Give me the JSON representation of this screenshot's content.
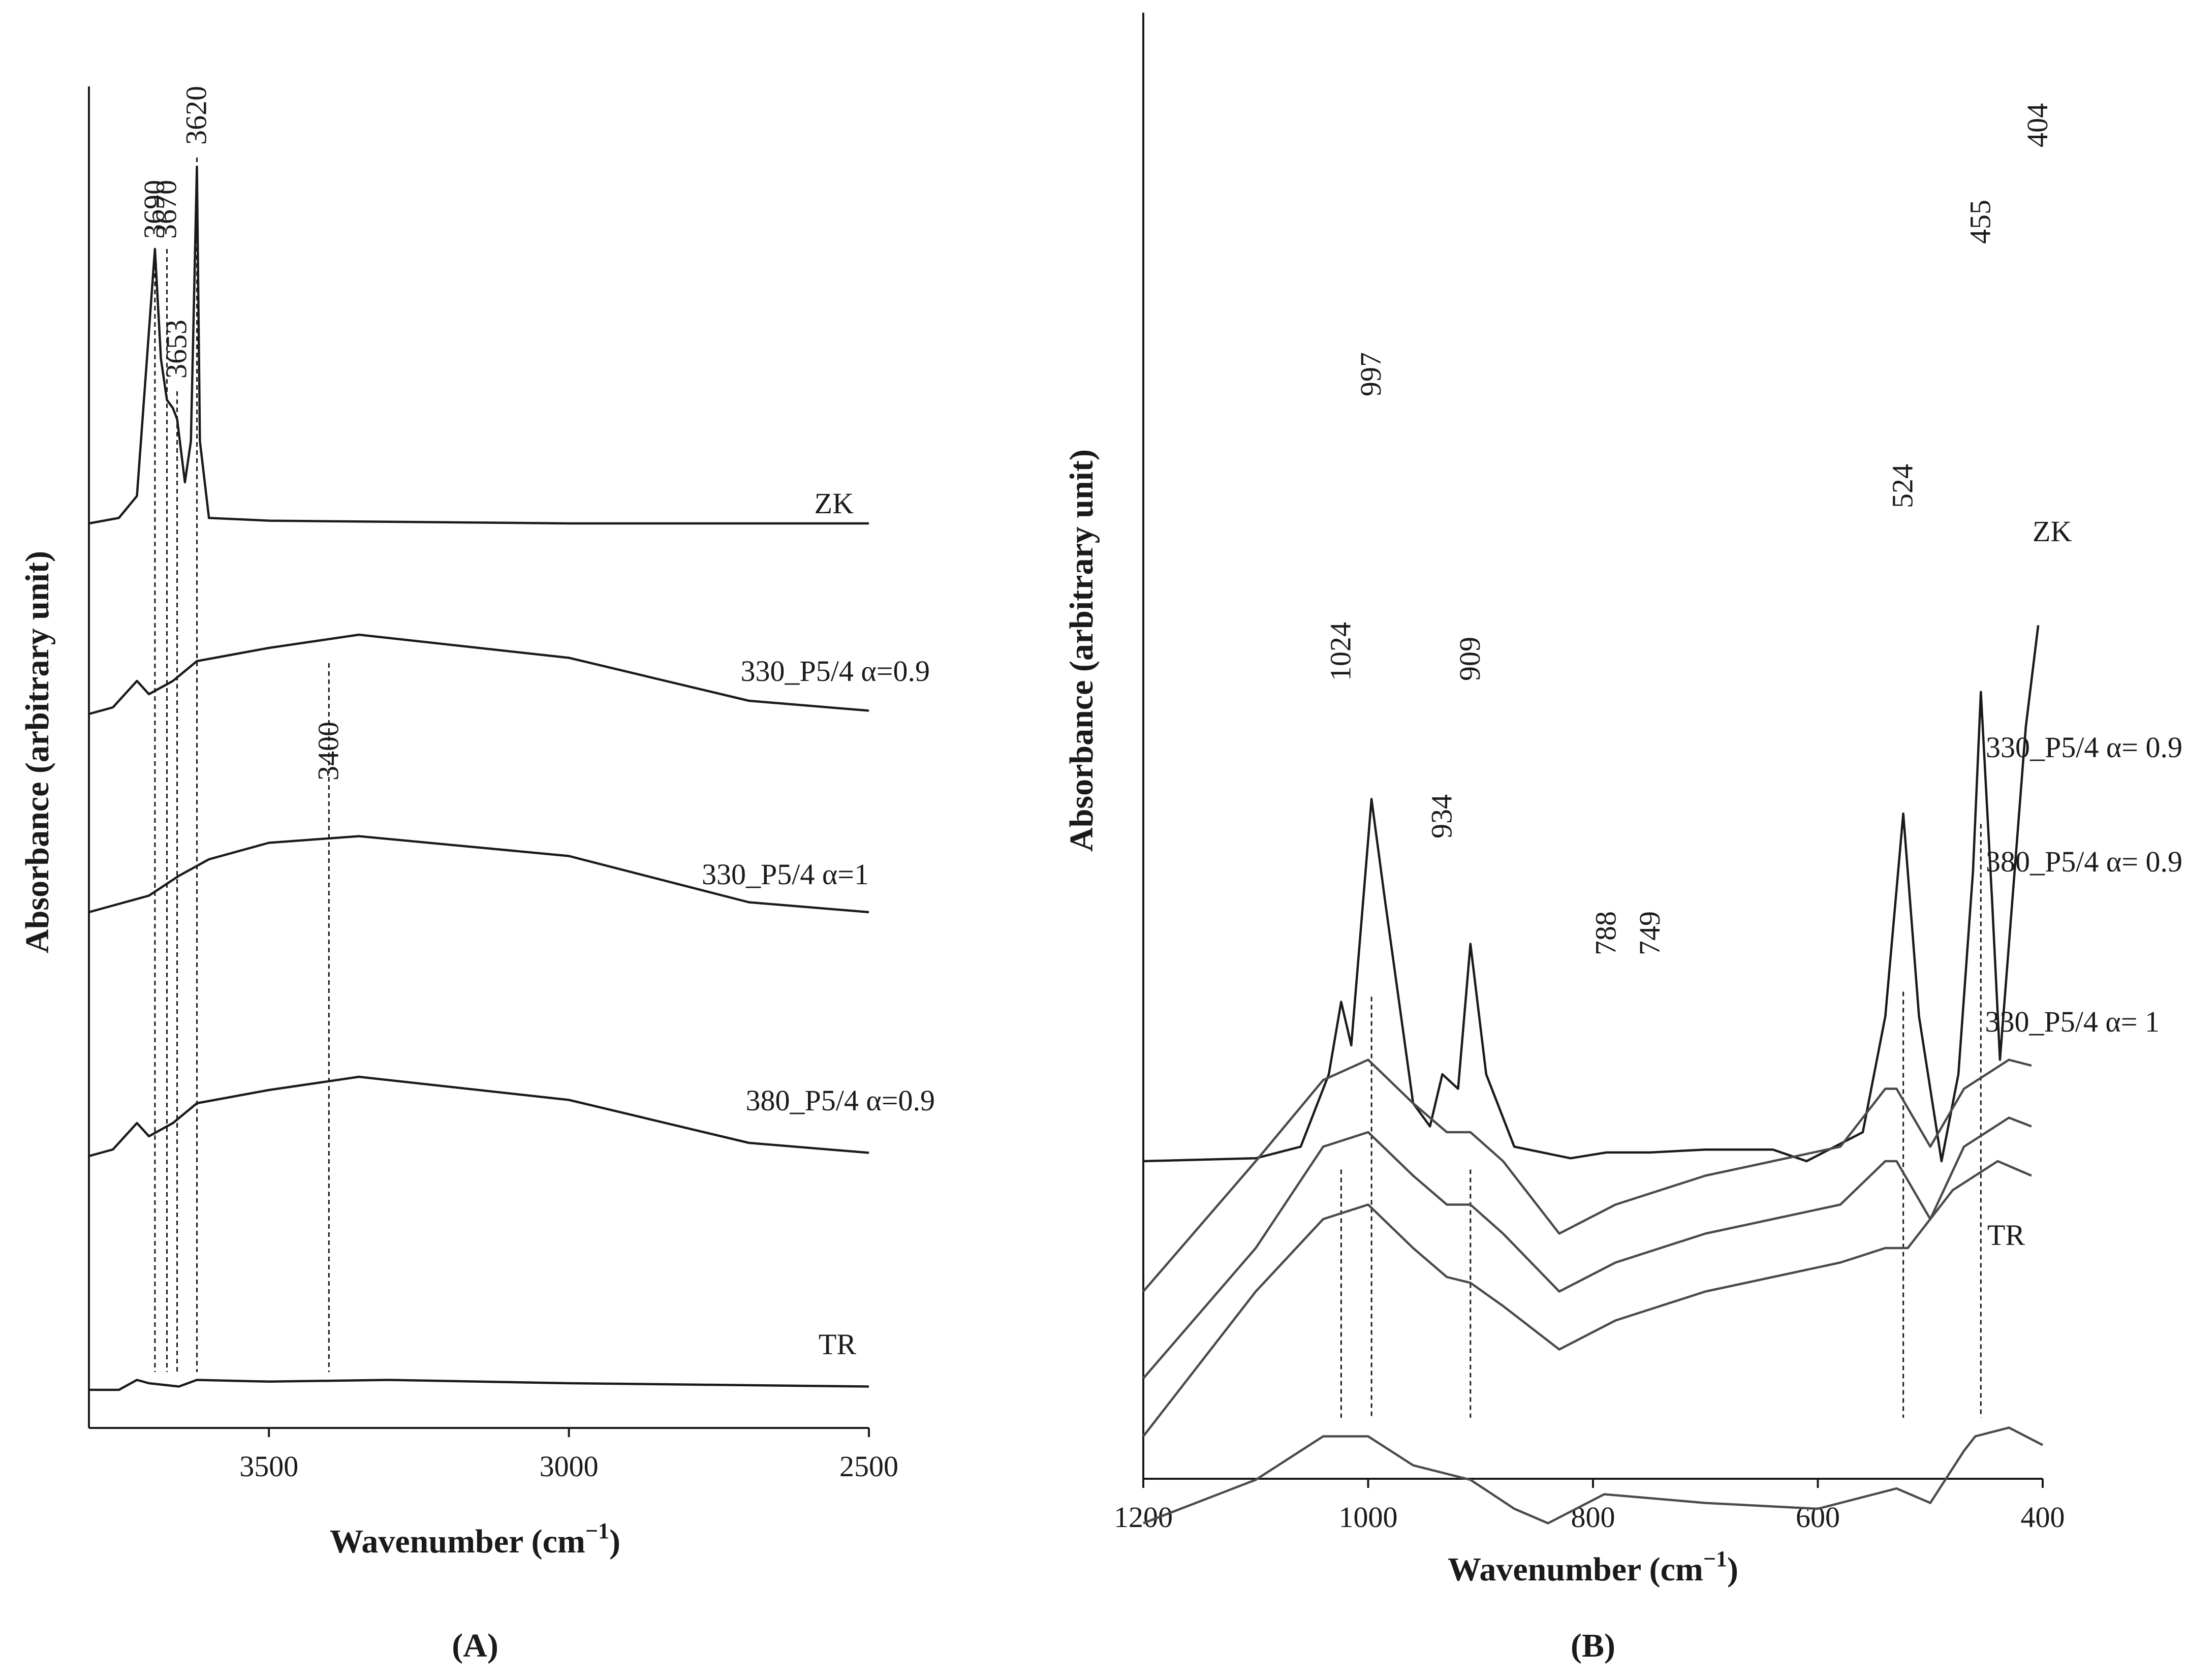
{
  "chart_data": [
    {
      "panel": "A",
      "type": "line",
      "xlabel_main": "Wavenumber (cm",
      "xlabel_sup": "−1",
      "xlabel_close": ")",
      "ylabel": "Absorbance (arbitrary unit)",
      "xlim": [
        3800,
        2500
      ],
      "x_ticks": [
        "3500",
        "3000",
        "2500"
      ],
      "x_tick_values": [
        3500,
        3000,
        2500
      ],
      "peak_markers": [
        {
          "label": "3690",
          "x": 3690
        },
        {
          "label": "3670",
          "x": 3670
        },
        {
          "label": "3653",
          "x": 3653
        },
        {
          "label": "3620",
          "x": 3620
        },
        {
          "label": "3400",
          "x": 3400
        }
      ],
      "series": [
        {
          "name": "ZK",
          "points": [
            [
              3800,
              0
            ],
            [
              3750,
              0.02
            ],
            [
              3720,
              0.1
            ],
            [
              3700,
              0.7
            ],
            [
              3690,
              1.0
            ],
            [
              3680,
              0.6
            ],
            [
              3670,
              0.45
            ],
            [
              3660,
              0.42
            ],
            [
              3653,
              0.38
            ],
            [
              3640,
              0.15
            ],
            [
              3630,
              0.3
            ],
            [
              3620,
              1.3
            ],
            [
              3615,
              0.3
            ],
            [
              3600,
              0.02
            ],
            [
              3500,
              0.01
            ],
            [
              3000,
              0
            ],
            [
              2500,
              0
            ]
          ]
        },
        {
          "name": "330_P5/4 α=0.9",
          "points": [
            [
              3800,
              0
            ],
            [
              3760,
              0.02
            ],
            [
              3720,
              0.1
            ],
            [
              3700,
              0.06
            ],
            [
              3660,
              0.1
            ],
            [
              3620,
              0.16
            ],
            [
              3500,
              0.2
            ],
            [
              3350,
              0.24
            ],
            [
              3000,
              0.17
            ],
            [
              2700,
              0.04
            ],
            [
              2500,
              0.01
            ]
          ]
        },
        {
          "name": "330_P5/4 α=1",
          "points": [
            [
              3800,
              0
            ],
            [
              3760,
              0.02
            ],
            [
              3700,
              0.05
            ],
            [
              3650,
              0.11
            ],
            [
              3600,
              0.16
            ],
            [
              3500,
              0.21
            ],
            [
              3350,
              0.23
            ],
            [
              3000,
              0.17
            ],
            [
              2700,
              0.03
            ],
            [
              2500,
              0.0
            ]
          ]
        },
        {
          "name": "380_P5/4 α=0.9",
          "points": [
            [
              3800,
              0
            ],
            [
              3760,
              0.02
            ],
            [
              3720,
              0.1
            ],
            [
              3700,
              0.06
            ],
            [
              3660,
              0.1
            ],
            [
              3620,
              0.16
            ],
            [
              3500,
              0.2
            ],
            [
              3350,
              0.24
            ],
            [
              3000,
              0.17
            ],
            [
              2700,
              0.04
            ],
            [
              2500,
              0.01
            ]
          ]
        },
        {
          "name": "TR",
          "points": [
            [
              3800,
              0
            ],
            [
              3750,
              0.0
            ],
            [
              3720,
              0.03
            ],
            [
              3700,
              0.02
            ],
            [
              3650,
              0.01
            ],
            [
              3620,
              0.03
            ],
            [
              3500,
              0.025
            ],
            [
              3300,
              0.03
            ],
            [
              3000,
              0.02
            ],
            [
              2500,
              0.01
            ]
          ]
        }
      ],
      "series_labels": [
        "ZK",
        "330_P5/4 α=0.9",
        "330_P5/4 α=1",
        "380_P5/4 α=0.9",
        "TR"
      ],
      "panel_label": "(A)"
    },
    {
      "panel": "B",
      "type": "line",
      "xlabel_main": "Wavenumber (cm",
      "xlabel_sup": "−1",
      "xlabel_close": ")",
      "ylabel": "Absorbance (arbitrary unit)",
      "xlim": [
        1200,
        400
      ],
      "x_ticks": [
        "1200",
        "1000",
        "800",
        "600",
        "400"
      ],
      "x_tick_values": [
        1200,
        1000,
        800,
        600,
        400
      ],
      "peak_markers": [
        {
          "label": "1024",
          "x": 1024
        },
        {
          "label": "997",
          "x": 997
        },
        {
          "label": "934",
          "x": 934
        },
        {
          "label": "909",
          "x": 909
        },
        {
          "label": "788",
          "x": 788
        },
        {
          "label": "749",
          "x": 749
        },
        {
          "label": "524",
          "x": 524
        },
        {
          "label": "455",
          "x": 455
        },
        {
          "label": "404",
          "x": 404
        }
      ],
      "series": [
        {
          "name": "ZK",
          "points": [
            [
              1200,
              0
            ],
            [
              1100,
              0.01
            ],
            [
              1060,
              0.05
            ],
            [
              1035,
              0.3
            ],
            [
              1024,
              0.55
            ],
            [
              1015,
              0.4
            ],
            [
              997,
              1.25
            ],
            [
              985,
              0.9
            ],
            [
              960,
              0.2
            ],
            [
              945,
              0.12
            ],
            [
              934,
              0.3
            ],
            [
              920,
              0.25
            ],
            [
              909,
              0.75
            ],
            [
              895,
              0.3
            ],
            [
              870,
              0.05
            ],
            [
              820,
              0.01
            ],
            [
              788,
              0.03
            ],
            [
              749,
              0.03
            ],
            [
              700,
              0.04
            ],
            [
              640,
              0.04
            ],
            [
              610,
              0.0
            ],
            [
              560,
              0.1
            ],
            [
              540,
              0.5
            ],
            [
              524,
              1.2
            ],
            [
              510,
              0.5
            ],
            [
              490,
              0.0
            ],
            [
              475,
              0.3
            ],
            [
              462,
              1.0
            ],
            [
              455,
              1.62
            ],
            [
              445,
              0.9
            ],
            [
              438,
              0.35
            ],
            [
              425,
              1.0
            ],
            [
              415,
              1.5
            ],
            [
              404,
              1.85
            ]
          ]
        },
        {
          "name": "330_P5/4 α=0.9",
          "points": [
            [
              1200,
              -0.45
            ],
            [
              1100,
              0.0
            ],
            [
              1040,
              0.28
            ],
            [
              1000,
              0.35
            ],
            [
              960,
              0.2
            ],
            [
              930,
              0.1
            ],
            [
              909,
              0.1
            ],
            [
              880,
              0.0
            ],
            [
              830,
              -0.25
            ],
            [
              780,
              -0.15
            ],
            [
              700,
              -0.05
            ],
            [
              640,
              0.0
            ],
            [
              580,
              0.05
            ],
            [
              540,
              0.25
            ],
            [
              530,
              0.25
            ],
            [
              500,
              0.05
            ],
            [
              470,
              0.25
            ],
            [
              430,
              0.35
            ],
            [
              410,
              0.33
            ]
          ]
        },
        {
          "name": "380_P5/4 α=0.9",
          "points": [
            [
              1200,
              -0.75
            ],
            [
              1100,
              -0.3
            ],
            [
              1040,
              0.05
            ],
            [
              1000,
              0.1
            ],
            [
              960,
              -0.05
            ],
            [
              930,
              -0.15
            ],
            [
              909,
              -0.15
            ],
            [
              880,
              -0.25
            ],
            [
              830,
              -0.45
            ],
            [
              780,
              -0.35
            ],
            [
              700,
              -0.25
            ],
            [
              640,
              -0.2
            ],
            [
              580,
              -0.15
            ],
            [
              540,
              0.0
            ],
            [
              530,
              0.0
            ],
            [
              500,
              -0.2
            ],
            [
              470,
              0.05
            ],
            [
              430,
              0.15
            ],
            [
              410,
              0.12
            ]
          ]
        },
        {
          "name": "330_P5/4 α=1",
          "points": [
            [
              1200,
              -0.95
            ],
            [
              1100,
              -0.45
            ],
            [
              1040,
              -0.2
            ],
            [
              1000,
              -0.15
            ],
            [
              960,
              -0.3
            ],
            [
              930,
              -0.4
            ],
            [
              909,
              -0.42
            ],
            [
              880,
              -0.5
            ],
            [
              830,
              -0.65
            ],
            [
              780,
              -0.55
            ],
            [
              700,
              -0.45
            ],
            [
              640,
              -0.4
            ],
            [
              580,
              -0.35
            ],
            [
              540,
              -0.3
            ],
            [
              520,
              -0.3
            ],
            [
              480,
              -0.1
            ],
            [
              440,
              0.0
            ],
            [
              410,
              -0.05
            ]
          ]
        },
        {
          "name": "TR",
          "points": [
            [
              1200,
              -1.25
            ],
            [
              1100,
              -1.1
            ],
            [
              1040,
              -0.95
            ],
            [
              1000,
              -0.95
            ],
            [
              960,
              -1.05
            ],
            [
              909,
              -1.1
            ],
            [
              870,
              -1.2
            ],
            [
              840,
              -1.25
            ],
            [
              790,
              -1.15
            ],
            [
              700,
              -1.18
            ],
            [
              600,
              -1.2
            ],
            [
              550,
              -1.15
            ],
            [
              530,
              -1.13
            ],
            [
              500,
              -1.18
            ],
            [
              470,
              -1.0
            ],
            [
              460,
              -0.95
            ],
            [
              430,
              -0.92
            ],
            [
              400,
              -0.98
            ]
          ]
        }
      ],
      "series_labels": [
        "ZK",
        "330_P5/4 α= 0.9",
        "380_P5/4 α= 0.9",
        "330_P5/4 α= 1",
        "TR"
      ],
      "panel_label": "(B)"
    }
  ]
}
